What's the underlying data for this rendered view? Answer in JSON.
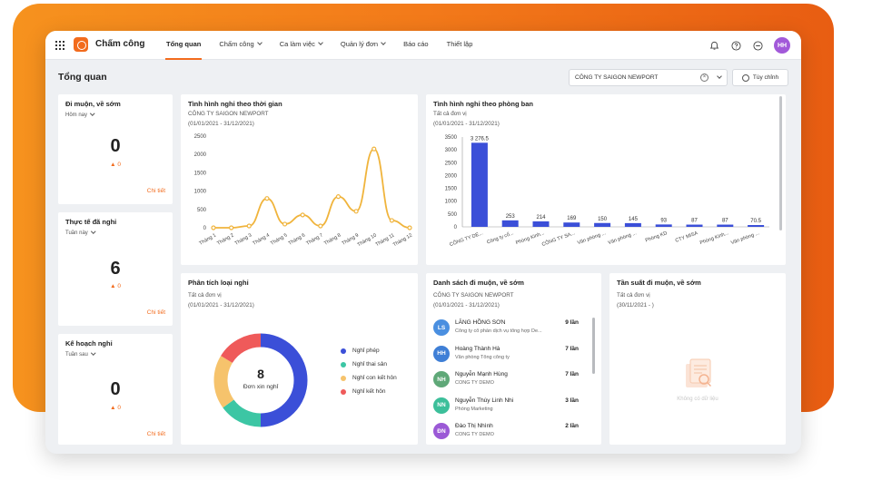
{
  "app": {
    "name": "Chấm công"
  },
  "nav": [
    {
      "label": "Tổng quan",
      "active": true,
      "has_dropdown": false
    },
    {
      "label": "Chấm công",
      "active": false,
      "has_dropdown": true
    },
    {
      "label": "Ca làm việc",
      "active": false,
      "has_dropdown": true
    },
    {
      "label": "Quản lý đơn",
      "active": false,
      "has_dropdown": true
    },
    {
      "label": "Báo cáo",
      "active": false,
      "has_dropdown": false
    },
    {
      "label": "Thiết lập",
      "active": false,
      "has_dropdown": false
    }
  ],
  "header_icons": [
    "bell-icon",
    "help-icon",
    "more-icon"
  ],
  "user": {
    "initials": "HH",
    "color": "#a259d9"
  },
  "page": {
    "title": "Tổng quan"
  },
  "filter": {
    "company": "CÔNG TY SAIGON NEWPORT",
    "clear": "×",
    "customize_label": "Tùy chỉnh"
  },
  "colors": {
    "accent": "#f26b1d",
    "bar": "#3b4fd8",
    "line": "#f0b43c"
  },
  "stats": [
    {
      "title": "Đi muộn, về sớm",
      "period": "Hôm nay",
      "value": "0",
      "delta": "0",
      "link": "Chi tiết"
    },
    {
      "title": "Thực tế đã nghỉ",
      "period": "Tuần này",
      "value": "6",
      "delta": "0",
      "link": "Chi tiết"
    },
    {
      "title": "Kế hoạch nghỉ",
      "period": "Tuần sau",
      "value": "0",
      "delta": "0",
      "link": "Chi tiết"
    }
  ],
  "leave_time": {
    "title": "Tình hình nghỉ theo thời gian",
    "company": "CÔNG TY SAIGON NEWPORT",
    "range": "(01/01/2021 - 31/12/2021)"
  },
  "leave_dept": {
    "title": "Tình hình nghỉ theo phòng ban",
    "unit": "Tất cả đơn vị",
    "range": "(01/01/2021 - 31/12/2021)"
  },
  "leave_types": {
    "title": "Phân tích loại nghỉ",
    "unit": "Tất cả đơn vị",
    "range": "(01/01/2021 - 31/12/2021)",
    "center_value": "8",
    "center_label": "Đơn xin nghỉ"
  },
  "late_list": {
    "title": "Danh sách đi muộn, về sớm",
    "company": "CÔNG TY SAIGON NEWPORT",
    "range": "(01/01/2021 - 31/12/2021)",
    "rows": [
      {
        "initials": "LS",
        "color": "#4a8fe0",
        "name": "LĂNG HỒNG SƠN",
        "unit": "Công ty cổ phần dịch vụ tổng hợp De...",
        "count": "9 lần"
      },
      {
        "initials": "HH",
        "color": "#3f7fd6",
        "name": "Hoàng Thành Hà",
        "unit": "Văn phòng Tổng công ty",
        "count": "7 lần"
      },
      {
        "initials": "NH",
        "color": "#5fa878",
        "name": "Nguyễn Mạnh Hùng",
        "unit": "CÔNG TY DEMO",
        "count": "7 lần"
      },
      {
        "initials": "NN",
        "color": "#3cbf9a",
        "name": "Nguyễn Thùy Linh Nhi",
        "unit": "Phòng Marketing",
        "count": "3 lần"
      },
      {
        "initials": "ĐN",
        "color": "#9b59d6",
        "name": "Đào Thị Nhình",
        "unit": "CÔNG TY DEMO",
        "count": "2 lần"
      }
    ]
  },
  "late_freq": {
    "title": "Tần suất đi muộn, về sớm",
    "unit": "Tất cả đơn vị",
    "range": "(30/11/2021 - )",
    "empty": "Không có dữ liệu"
  },
  "chart_data": [
    {
      "type": "line",
      "categories": [
        "Tháng 1",
        "Tháng 2",
        "Tháng 3",
        "Tháng 4",
        "Tháng 5",
        "Tháng 6",
        "Tháng 7",
        "Tháng 8",
        "Tháng 9",
        "Tháng 10",
        "Tháng 11",
        "Tháng 12"
      ],
      "values": [
        0,
        0,
        50,
        800,
        100,
        350,
        50,
        850,
        450,
        2150,
        200,
        0
      ],
      "y_ticks": [
        0,
        500,
        1000,
        1500,
        2000,
        2500
      ],
      "ylim": [
        0,
        2500
      ],
      "grid": false
    },
    {
      "type": "bar",
      "categories": [
        "CÔNG TY DE...",
        "Công ty cổ...",
        "Phòng Kinh...",
        "CÔNG TY SA...",
        "Văn phòng ...",
        "Văn phòng ...",
        "Phòng KD",
        "CTY MISA",
        "Phòng Kinh...",
        "Văn phòng ..."
      ],
      "values": [
        3276.5,
        253,
        214,
        169,
        150,
        145,
        93,
        87,
        87,
        70.5
      ],
      "data_labels": [
        "3 276.5",
        "253",
        "214",
        "169",
        "150",
        "145",
        "93",
        "87",
        "87",
        "70.5"
      ],
      "y_ticks": [
        0,
        500,
        1000,
        1500,
        2000,
        2500,
        3000,
        3500
      ],
      "ylim": [
        0,
        3500
      ],
      "grid": false
    },
    {
      "type": "pie",
      "series": [
        {
          "name": "Nghỉ phép",
          "value": 4,
          "color": "#3b4fd8"
        },
        {
          "name": "Nghỉ thai sản",
          "value": 1.2,
          "color": "#3cc6a4"
        },
        {
          "name": "Nghỉ con kết hôn",
          "value": 1.5,
          "color": "#f6c36c"
        },
        {
          "name": "Nghỉ kết hôn",
          "value": 1.3,
          "color": "#ef5a5a"
        }
      ]
    }
  ]
}
